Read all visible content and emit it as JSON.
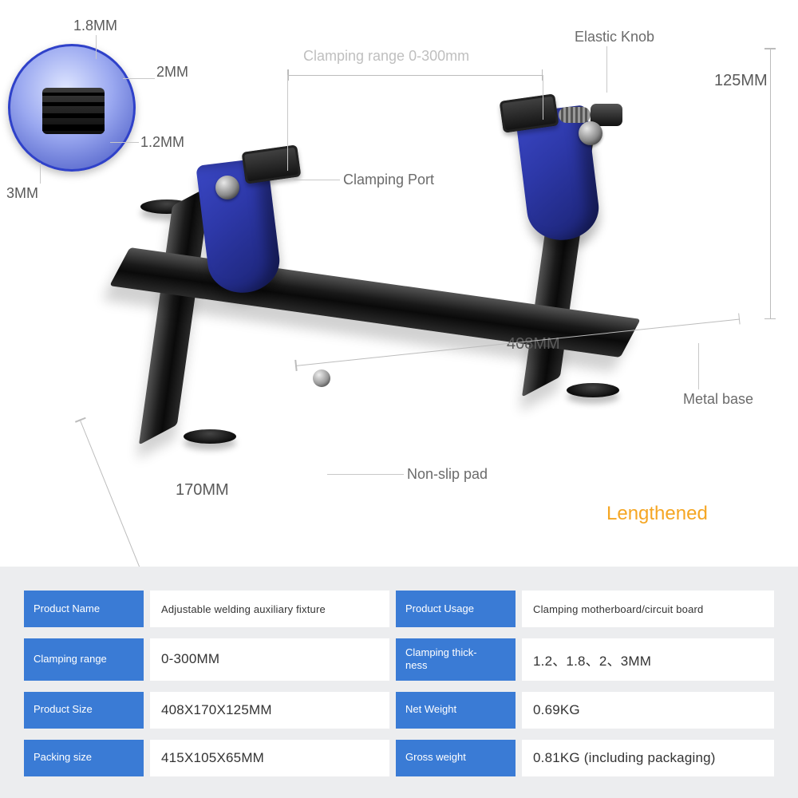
{
  "colors": {
    "accent": "#3a7bd5",
    "brand_blue": "#2d38a8",
    "panel_bg": "#ecedef",
    "variant": "#f5a623",
    "label": "#6b6b6b",
    "dim": "#5a5a5a"
  },
  "annotations": {
    "elastic_knob": "Elastic Knob",
    "clamping_range": "Clamping range 0-300mm",
    "clamping_port": "Clamping Port",
    "metal_base": "Metal base",
    "non_slip_pad": "Non-slip pad"
  },
  "dimensions": {
    "height": "125MM",
    "length": "408MM",
    "width": "170MM"
  },
  "inset": {
    "slot_a": "1.8MM",
    "slot_b": "2MM",
    "slot_c": "1.2MM",
    "slot_d": "3MM"
  },
  "variant": "Lengthened",
  "specs": {
    "rows": [
      {
        "k1": "Product Name",
        "v1": "Adjustable welding auxiliary fixture",
        "k2": "Product Usage",
        "v2": "Clamping motherboard/circuit board"
      },
      {
        "k1": "Clamping range",
        "v1": "0-300MM",
        "k2": "Clamping thick-\nness",
        "v2": "1.2、1.8、2、3MM"
      },
      {
        "k1": "Product Size",
        "v1": "408X170X125MM",
        "k2": "Net Weight",
        "v2": "0.69KG"
      },
      {
        "k1": "Packing size",
        "v1": "415X105X65MM",
        "k2": "Gross weight",
        "v2": "0.81KG (including packaging)"
      }
    ]
  }
}
